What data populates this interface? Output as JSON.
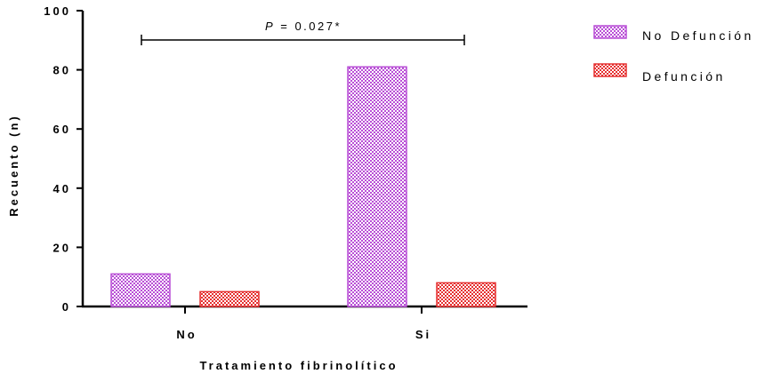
{
  "chart_data": {
    "type": "bar",
    "title": "",
    "xlabel": "Tratamiento fibrinolítico",
    "ylabel": "Recuento (n)",
    "ylim": [
      0,
      100
    ],
    "yticks": [
      "0",
      "20",
      "40",
      "60",
      "80",
      "100"
    ],
    "categories": [
      "No",
      "Si"
    ],
    "series": [
      {
        "name": "No Defunción",
        "values": [
          11,
          81
        ],
        "color": "#b94fd6",
        "pattern": "purple-checker"
      },
      {
        "name": "Defunción",
        "values": [
          5,
          8
        ],
        "color": "#e53030",
        "pattern": "red-checker"
      }
    ],
    "legend_position": "top-right",
    "grid": false,
    "annotation": {
      "p_symbol": "P",
      "text": " = 0.027*",
      "from_category": "No",
      "to_category": "Si"
    }
  }
}
